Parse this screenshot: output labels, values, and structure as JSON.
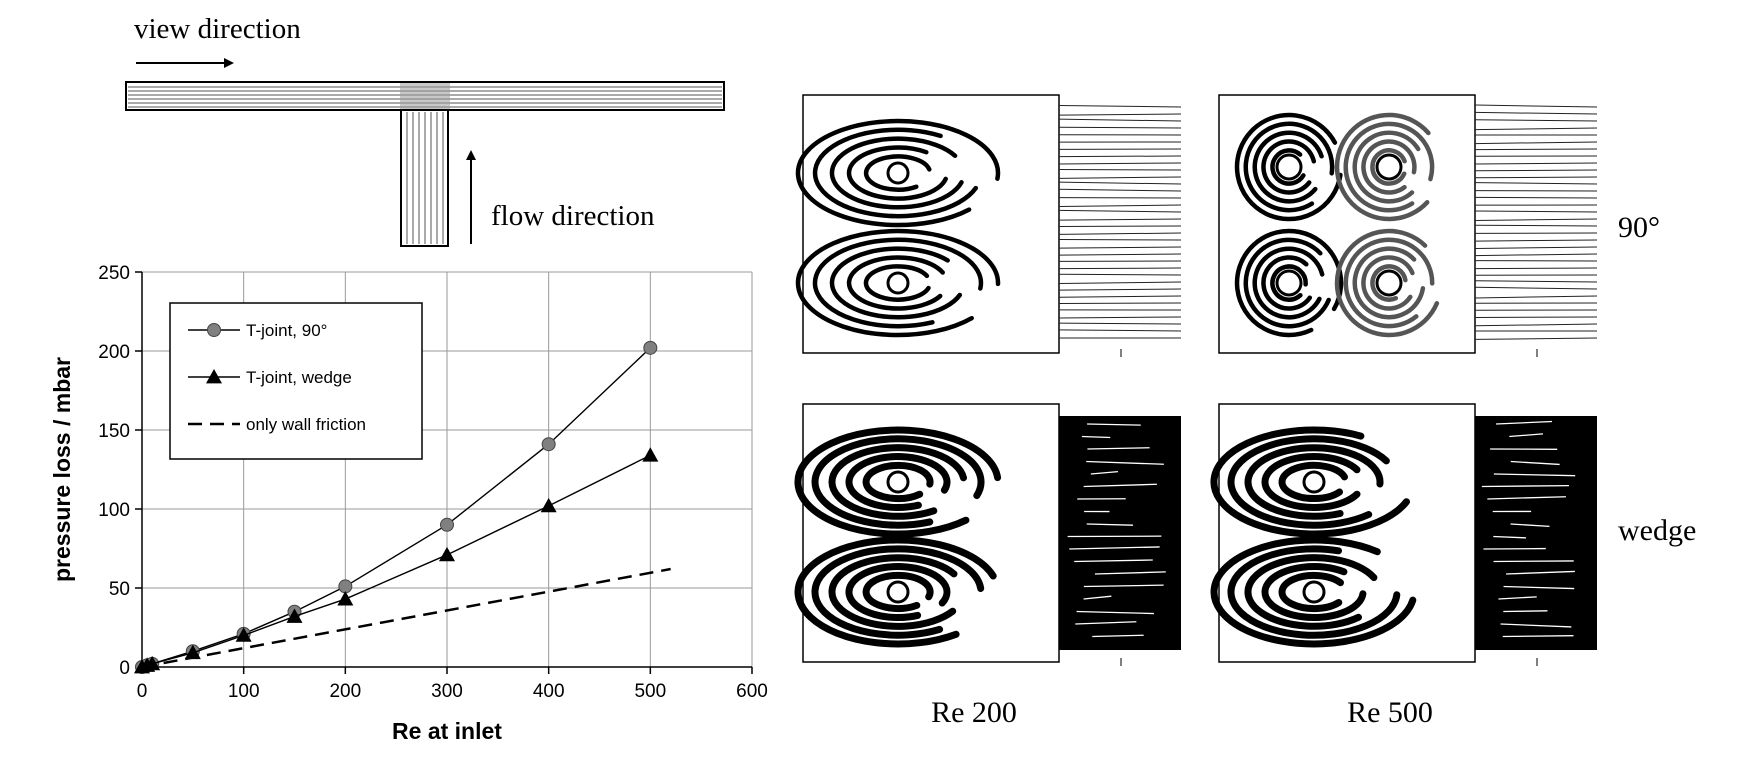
{
  "diagram": {
    "view_label": "view direction",
    "flow_label": "flow direction"
  },
  "chart_data": {
    "type": "line",
    "xlabel": "Re at inlet",
    "ylabel": "pressure loss / mbar",
    "xlim": [
      0,
      600
    ],
    "ylim": [
      0,
      250
    ],
    "xticks": [
      0,
      100,
      200,
      300,
      400,
      500,
      600
    ],
    "yticks": [
      0,
      50,
      100,
      150,
      200,
      250
    ],
    "grid": true,
    "legend_position": "top-left",
    "series": [
      {
        "name": "T-joint, 90°",
        "marker": "circle",
        "color": "#808080",
        "line": "solid",
        "x": [
          0,
          5,
          10,
          50,
          100,
          150,
          200,
          300,
          400,
          500
        ],
        "y": [
          0,
          1,
          2,
          10,
          21,
          35,
          51,
          90,
          141,
          202
        ]
      },
      {
        "name": "T-joint, wedge",
        "marker": "triangle",
        "color": "#000000",
        "line": "solid",
        "x": [
          0,
          5,
          10,
          50,
          100,
          150,
          200,
          300,
          400,
          500
        ],
        "y": [
          0,
          1,
          2,
          9,
          20,
          32,
          43,
          71,
          102,
          134
        ]
      },
      {
        "name": "only wall friction",
        "marker": "none",
        "color": "#000000",
        "line": "dashed",
        "x": [
          0,
          520
        ],
        "y": [
          0,
          62
        ]
      }
    ]
  },
  "panels": {
    "row_labels": [
      "90°",
      "wedge"
    ],
    "col_labels": [
      "Re 200",
      "Re 500"
    ]
  }
}
